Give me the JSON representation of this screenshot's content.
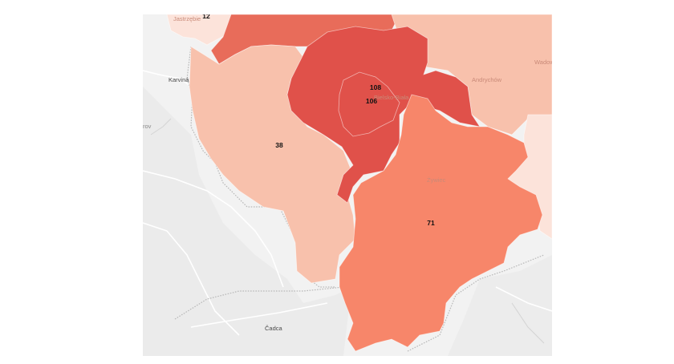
{
  "map": {
    "base_labels": {
      "karvina": "Karviná",
      "edge_left": "rov",
      "cadca": "Čadca",
      "zywiec": "Żywiec",
      "andrychow": "Andrychów",
      "wadowice": "Wadow",
      "jastrzebie": "Jastrzębie",
      "bielsko": "Bielsko-Biała"
    },
    "region_values": {
      "top_left": "12",
      "cieszyn_county": "38",
      "bielsko_county_a": "108",
      "bielsko_county_b": "106",
      "zywiec_county": "71"
    },
    "colors": {
      "darkest": "#e0514a",
      "dark": "#e86c5a",
      "medium": "#f7866a",
      "light": "#f8c1ac",
      "lighter": "#f9cfbf",
      "lightest": "#fce3da",
      "base_land": "#f2f2f2"
    }
  }
}
